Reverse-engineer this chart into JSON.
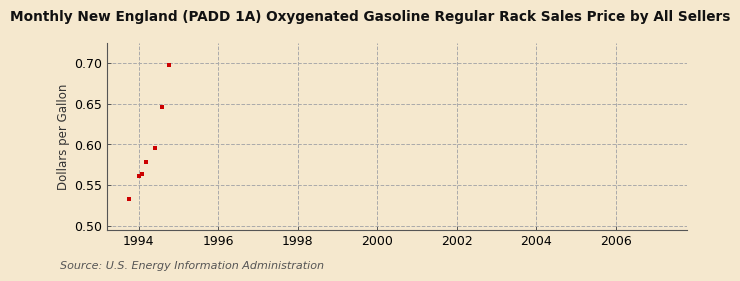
{
  "title": "Monthly New England (PADD 1A) Oxygenated Gasoline Regular Rack Sales Price by All Sellers",
  "ylabel": "Dollars per Gallon",
  "source": "Source: U.S. Energy Information Administration",
  "background_color": "#f5e8ce",
  "x_data": [
    1993.75,
    1994.0,
    1994.08,
    1994.17,
    1994.42,
    1994.58,
    1994.75
  ],
  "y_data": [
    0.533,
    0.561,
    0.563,
    0.578,
    0.596,
    0.646,
    0.698
  ],
  "marker_color": "#cc0000",
  "xlim": [
    1993.2,
    2007.8
  ],
  "ylim": [
    0.495,
    0.725
  ],
  "xticks": [
    1994,
    1996,
    1998,
    2000,
    2002,
    2004,
    2006
  ],
  "yticks": [
    0.5,
    0.55,
    0.6,
    0.65,
    0.7
  ],
  "title_fontsize": 9.8,
  "ylabel_fontsize": 8.5,
  "tick_fontsize": 9,
  "source_fontsize": 8
}
